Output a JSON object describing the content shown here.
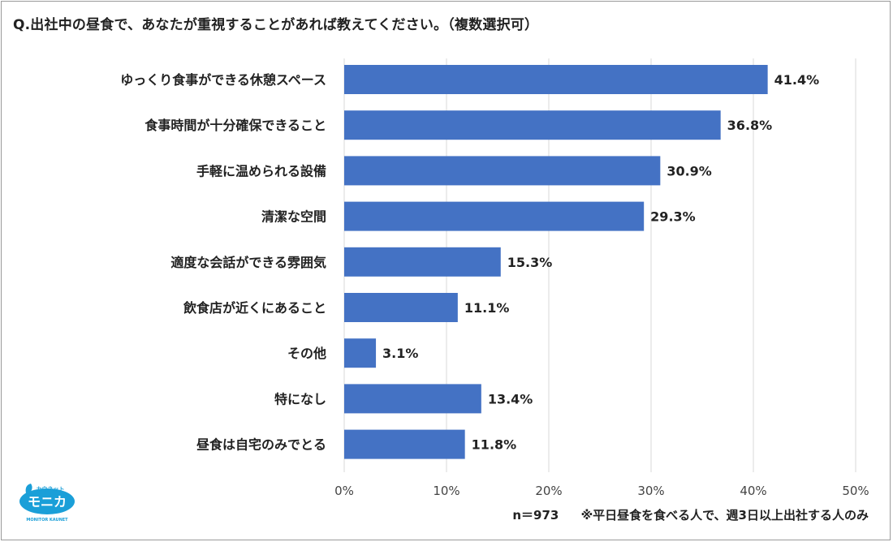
{
  "title": "Q.出社中の昼食で、あなたが重視することがあれば教えてください。（複数選択可）",
  "chart_data": {
    "type": "bar",
    "orientation": "horizontal",
    "categories": [
      "ゆっくり食事ができる休憩スペース",
      "食事時間が十分確保できること",
      "手軽に温められる設備",
      "清潔な空間",
      "適度な会話ができる雰囲気",
      "飲食店が近くにあること",
      "その他",
      "特になし",
      "昼食は自宅のみでとる"
    ],
    "values": [
      41.4,
      36.8,
      30.9,
      29.3,
      15.3,
      11.1,
      3.1,
      13.4,
      11.8
    ],
    "value_labels": [
      "41.4%",
      "36.8%",
      "30.9%",
      "29.3%",
      "15.3%",
      "11.1%",
      "3.1%",
      "13.4%",
      "11.8%"
    ],
    "xlim": [
      0,
      50
    ],
    "xticks": [
      0,
      10,
      20,
      30,
      40,
      50
    ],
    "xtick_labels": [
      "0%",
      "10%",
      "20%",
      "30%",
      "40%",
      "50%"
    ],
    "grid": true,
    "bar_color": "#4472C4",
    "grid_color": "#d9d9d9"
  },
  "footnote": {
    "sample": "n＝973",
    "condition": "※平日昼食を食べる人で、週3日以上出社する人のみ"
  },
  "logo": {
    "top_text": "カウネット",
    "main_text": "モニカ",
    "bottom_text": "MONITOR KAUNET",
    "color": "#1a9fd8"
  }
}
